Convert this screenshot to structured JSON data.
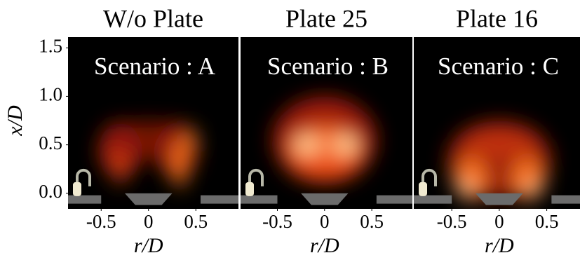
{
  "chart_data": [
    {
      "type": "heatmap",
      "title": "W/o Plate",
      "annotation": "Scenario : A",
      "xlabel": "r/D",
      "ylabel": "x/D",
      "xlim": [
        -0.85,
        0.95
      ],
      "xticks": [
        -0.5,
        0,
        0.5
      ],
      "ylim": [
        -0.16,
        1.61
      ],
      "yticks": [
        {
          "value": 0,
          "label": "0.0"
        },
        {
          "value": 0.5,
          "label": "0.5"
        },
        {
          "value": 1,
          "label": "1.0"
        },
        {
          "value": 1.5,
          "label": "1.5"
        }
      ]
    },
    {
      "type": "heatmap",
      "title": "Plate 25",
      "annotation": "Scenario : B",
      "xlabel": "r/D",
      "xlim": [
        -0.89,
        0.93
      ],
      "xticks": [
        -0.5,
        0,
        0.5
      ],
      "ylim": [
        -0.16,
        1.61
      ]
    },
    {
      "type": "heatmap",
      "title": "Plate 16",
      "annotation": "Scenario : C",
      "xlabel": "r/D",
      "xlim": [
        -0.9,
        0.85
      ],
      "xticks": [
        -0.5,
        0,
        0.5
      ],
      "ylim": [
        -0.16,
        1.61
      ]
    }
  ]
}
